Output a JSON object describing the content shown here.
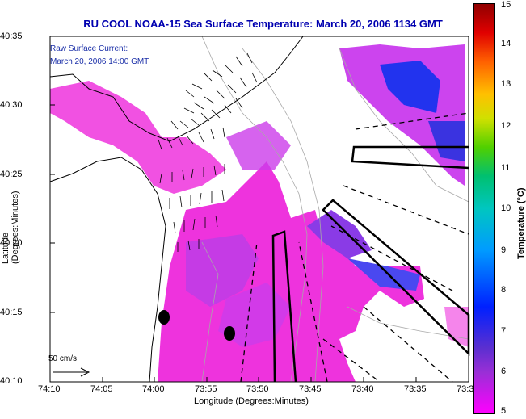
{
  "title": "RU COOL  NOAA-15  Sea Surface Temperature:  March 20, 2006 1134 GMT",
  "legend": {
    "line1": "Raw Surface Current:",
    "line2": "March 20, 2006 14:00 GMT"
  },
  "axes": {
    "x_title": "Longitude (Degrees:Minutes)",
    "y_title": "Latitude (Degrees:Minutes)",
    "x_ticks": [
      "74:10",
      "74:05",
      "74:00",
      "73:55",
      "73:50",
      "73:45",
      "73:40",
      "73:35",
      "73:3"
    ],
    "y_ticks": [
      "40:35",
      "40:30",
      "40:25",
      "40:20",
      "40:15",
      "40:10"
    ]
  },
  "scale_arrow_label": "50 cm/s",
  "colorbar": {
    "title": "Temperature (°C)",
    "ticks": [
      "15",
      "14",
      "13",
      "12",
      "11",
      "10",
      "9",
      "8",
      "7",
      "6",
      "5"
    ],
    "min": 5,
    "max": 15
  },
  "colors": {
    "title": "#0000b0",
    "legend_text": "#1b2fa8",
    "sst_warm": "#ff33cc",
    "sst_cool": "#9933ee",
    "sst_cold": "#3344ff"
  }
}
